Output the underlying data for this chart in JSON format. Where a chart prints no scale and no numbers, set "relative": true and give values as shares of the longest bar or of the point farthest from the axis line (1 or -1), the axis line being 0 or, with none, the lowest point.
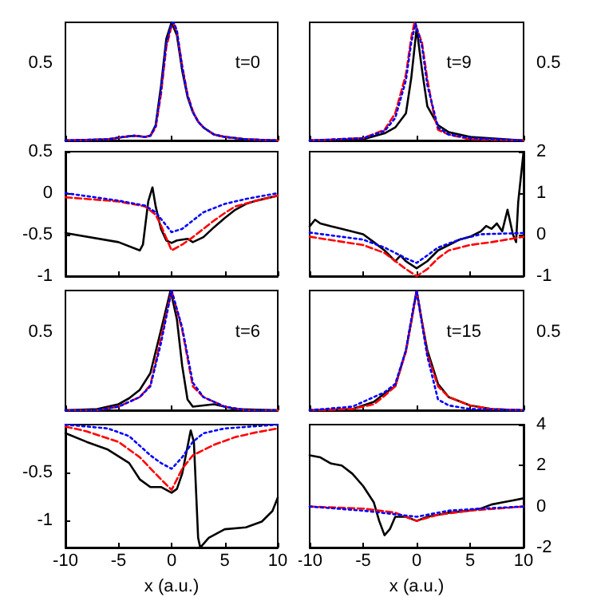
{
  "chart_data": [
    {
      "type": "line",
      "relative": true,
      "annotations": [
        "0.5",
        "t=0"
      ],
      "xlim": [
        -10,
        10
      ],
      "xticks": [
        -10,
        -5,
        0,
        5,
        10
      ],
      "tick_labels": "y",
      "marker": "none",
      "series": [
        {
          "color": "#000000",
          "line_style": "solid",
          "x": [
            -10,
            -6,
            -4.5,
            -3.5,
            -2.5,
            -2,
            -1.5,
            -1,
            -0.5,
            0,
            0.5,
            1,
            1.5,
            2,
            2.5,
            3,
            4,
            5,
            7,
            10
          ],
          "values": [
            0,
            0.01,
            0.03,
            0.04,
            0.03,
            0.04,
            0.13,
            0.46,
            0.86,
            1,
            0.89,
            0.59,
            0.37,
            0.24,
            0.16,
            0.11,
            0.05,
            0.03,
            0.01,
            0
          ]
        },
        {
          "color": "#ff0000",
          "line_style": "dashed",
          "x": [
            -10,
            -6,
            -4.5,
            -3.5,
            -2.5,
            -2,
            -1.5,
            -1,
            -0.5,
            0,
            0.2,
            0.5,
            1,
            1.5,
            2,
            2.5,
            3,
            4,
            5,
            7,
            10
          ],
          "values": [
            0,
            0.01,
            0.03,
            0.04,
            0.03,
            0.04,
            0.11,
            0.39,
            0.79,
            0.97,
            0.99,
            0.92,
            0.63,
            0.39,
            0.25,
            0.16,
            0.11,
            0.05,
            0.03,
            0.01,
            0
          ]
        },
        {
          "color": "#0000ff",
          "line_style": "dotted",
          "x": [
            -10,
            -6,
            -4.5,
            -3.5,
            -2.5,
            -2,
            -1.5,
            -1,
            -0.5,
            0,
            0.2,
            0.5,
            1,
            1.5,
            2,
            2.5,
            3,
            4,
            5,
            7,
            10
          ],
          "values": [
            0,
            0.01,
            0.03,
            0.04,
            0.03,
            0.04,
            0.12,
            0.42,
            0.82,
            0.99,
            1,
            0.93,
            0.62,
            0.38,
            0.24,
            0.16,
            0.11,
            0.05,
            0.03,
            0.01,
            0
          ]
        }
      ]
    },
    {
      "type": "line",
      "relative": true,
      "annotations": [
        "0.5",
        "t=9"
      ],
      "xlim": [
        -10,
        10
      ],
      "xticks": [
        -10,
        -5,
        0,
        5,
        10
      ],
      "tick_labels": "y",
      "marker": "none",
      "series": [
        {
          "color": "#000000",
          "line_style": "solid",
          "x": [
            -10,
            -5,
            -3,
            -2,
            -1,
            -0.5,
            0,
            0.5,
            1,
            2,
            3,
            5,
            10
          ],
          "values": [
            0,
            0.01,
            0.06,
            0.11,
            0.23,
            0.53,
            0.95,
            0.6,
            0.29,
            0.13,
            0.07,
            0.03,
            0
          ]
        },
        {
          "color": "#ff0000",
          "line_style": "dashed",
          "x": [
            -10,
            -5,
            -3,
            -2,
            -1,
            -0.5,
            -0.2,
            0.5,
            1,
            1.5,
            2,
            3,
            5,
            10
          ],
          "values": [
            0,
            0.02,
            0.09,
            0.23,
            0.56,
            0.87,
            1,
            0.83,
            0.52,
            0.27,
            0.09,
            0.05,
            0.01,
            0
          ]
        },
        {
          "color": "#0000ff",
          "line_style": "dotted",
          "x": [
            -10,
            -5,
            -3,
            -2,
            -1,
            -0.5,
            -0.1,
            0.5,
            1,
            2,
            3,
            5,
            10
          ],
          "values": [
            0,
            0.02,
            0.08,
            0.19,
            0.51,
            0.83,
            0.99,
            0.8,
            0.47,
            0.11,
            0.05,
            0.02,
            0
          ]
        }
      ]
    },
    {
      "type": "line",
      "xlim": [
        -10,
        10
      ],
      "xticks": [
        -10,
        -5,
        0,
        5,
        10
      ],
      "ylim": [
        -1,
        0.5
      ],
      "yticks": [
        -1,
        -0.5,
        0,
        0.5
      ],
      "tick_labels": "y",
      "marker": "none",
      "series": [
        {
          "color": "#000000",
          "line_style": "solid",
          "x": [
            -10,
            -5,
            -3,
            -2.7,
            -2.2,
            -1.8,
            -1.5,
            -1,
            -0.5,
            0,
            0.5,
            1.5,
            2,
            3,
            4,
            5,
            6,
            7,
            8,
            10
          ],
          "values": [
            -0.48,
            -0.59,
            -0.69,
            -0.62,
            -0.1,
            0.07,
            -0.16,
            -0.43,
            -0.57,
            -0.6,
            -0.57,
            -0.55,
            -0.59,
            -0.53,
            -0.41,
            -0.3,
            -0.2,
            -0.13,
            -0.09,
            -0.03
          ]
        },
        {
          "color": "#ff0000",
          "line_style": "dashed",
          "x": [
            -10,
            -5,
            -2.5,
            -1.5,
            -1,
            0,
            1,
            2,
            3,
            4,
            5,
            6,
            8,
            10
          ],
          "values": [
            -0.05,
            -0.1,
            -0.16,
            -0.26,
            -0.39,
            -0.69,
            -0.62,
            -0.53,
            -0.43,
            -0.33,
            -0.24,
            -0.16,
            -0.09,
            -0.03
          ]
        },
        {
          "color": "#0000ff",
          "line_style": "dotted",
          "x": [
            -10,
            -5,
            -2.5,
            -1.5,
            -0.5,
            0,
            1,
            2,
            3,
            5,
            7,
            10
          ],
          "values": [
            0,
            -0.09,
            -0.15,
            -0.23,
            -0.39,
            -0.47,
            -0.43,
            -0.33,
            -0.23,
            -0.13,
            -0.07,
            0
          ]
        }
      ]
    },
    {
      "type": "line",
      "xlim": [
        -10,
        10
      ],
      "xticks": [
        -10,
        -5,
        0,
        5,
        10
      ],
      "ylim": [
        -1,
        2
      ],
      "yticks": [
        -1,
        0,
        1,
        2
      ],
      "tick_labels": "y",
      "marker": "none",
      "series": [
        {
          "color": "#000000",
          "line_style": "solid",
          "x": [
            -10,
            -9.5,
            -9,
            -8,
            -7,
            -5,
            -4,
            -3,
            -2,
            -1.5,
            -1,
            0,
            1,
            2,
            3,
            4,
            5,
            6,
            6.5,
            7,
            7.5,
            8,
            8.5,
            9,
            9.3,
            9.5,
            10
          ],
          "values": [
            0.2,
            0.36,
            0.27,
            0.2,
            0.14,
            0.01,
            -0.18,
            -0.38,
            -0.64,
            -0.5,
            -0.64,
            -0.81,
            -0.64,
            -0.38,
            -0.25,
            -0.12,
            -0.05,
            0.08,
            0.21,
            0.14,
            0.27,
            0.08,
            0.6,
            0.01,
            -0.18,
            0.79,
            2
          ]
        },
        {
          "color": "#ff0000",
          "line_style": "dashed",
          "x": [
            -10,
            -5,
            -3,
            -1,
            0,
            1,
            2,
            3,
            5,
            7,
            10
          ],
          "values": [
            -0.05,
            -0.25,
            -0.44,
            -0.83,
            -1,
            -0.83,
            -0.57,
            -0.38,
            -0.25,
            -0.18,
            -0.05
          ]
        },
        {
          "color": "#0000ff",
          "line_style": "dotted",
          "x": [
            -10,
            -5,
            -3,
            -1,
            0,
            1,
            2,
            4,
            6,
            10
          ],
          "values": [
            0.05,
            -0.12,
            -0.31,
            -0.57,
            -0.68,
            -0.5,
            -0.31,
            -0.12,
            0.01,
            0.04
          ]
        }
      ]
    },
    {
      "type": "line",
      "relative": true,
      "annotations": [
        "0.5",
        "t=6"
      ],
      "xlim": [
        -10,
        10
      ],
      "xticks": [
        -10,
        -5,
        0,
        5,
        10
      ],
      "tick_labels": "y",
      "marker": "none",
      "series": [
        {
          "color": "#000000",
          "line_style": "solid",
          "x": [
            -10,
            -7,
            -5,
            -4,
            -3,
            -2,
            -1,
            -0.1,
            0.5,
            1,
            1.5,
            2,
            3,
            4,
            5,
            6,
            10
          ],
          "values": [
            0,
            0.01,
            0.05,
            0.1,
            0.17,
            0.31,
            0.67,
            1,
            0.76,
            0.37,
            0.09,
            0.03,
            0.04,
            0.05,
            0.03,
            0.01,
            0
          ]
        },
        {
          "color": "#ff0000",
          "line_style": "dashed",
          "x": [
            -10,
            -7,
            -5,
            -3,
            -2,
            -1,
            0,
            1,
            2,
            3,
            4,
            5,
            7,
            10
          ],
          "values": [
            0,
            0,
            0.03,
            0.11,
            0.21,
            0.6,
            1,
            0.67,
            0.2,
            0.11,
            0.07,
            0.03,
            0,
            0
          ]
        },
        {
          "color": "#0000ff",
          "line_style": "dotted",
          "x": [
            -10,
            -7,
            -5,
            -3,
            -2,
            -1,
            0,
            1,
            2,
            3,
            4,
            5,
            7,
            10
          ],
          "values": [
            0,
            0,
            0.03,
            0.11,
            0.2,
            0.56,
            1,
            0.69,
            0.23,
            0.11,
            0.07,
            0.03,
            0,
            0
          ]
        }
      ]
    },
    {
      "type": "line",
      "relative": true,
      "annotations": [
        "0.5",
        "t=15"
      ],
      "xlim": [
        -10,
        10
      ],
      "xticks": [
        -10,
        -5,
        0,
        5,
        10
      ],
      "tick_labels": "y",
      "marker": "none",
      "series": [
        {
          "color": "#000000",
          "line_style": "solid",
          "x": [
            -10,
            -6,
            -4,
            -3,
            -2,
            -1,
            -0.5,
            0,
            0.5,
            1,
            2,
            3,
            5,
            7,
            10
          ],
          "values": [
            0,
            0.01,
            0.07,
            0.14,
            0.2,
            0.5,
            0.74,
            1,
            0.74,
            0.5,
            0.22,
            0.11,
            0.04,
            0.01,
            0
          ]
        },
        {
          "color": "#ff0000",
          "line_style": "dashed",
          "x": [
            -10,
            -6,
            -4,
            -3,
            -2,
            -1,
            -0.5,
            0,
            0.5,
            1,
            2,
            3,
            5,
            7,
            10
          ],
          "values": [
            0,
            0.01,
            0.05,
            0.12,
            0.2,
            0.49,
            0.74,
            1,
            0.74,
            0.47,
            0.2,
            0.11,
            0.04,
            0.01,
            0
          ]
        },
        {
          "color": "#0000ff",
          "line_style": "dotted",
          "x": [
            -10,
            -6,
            -4,
            -3,
            -2,
            -1,
            -0.5,
            0,
            0.5,
            1,
            2,
            3,
            5,
            10
          ],
          "values": [
            0,
            0.03,
            0.11,
            0.15,
            0.22,
            0.5,
            0.76,
            1,
            0.72,
            0.45,
            0.09,
            0.04,
            0.01,
            0
          ]
        }
      ]
    },
    {
      "type": "line",
      "xlabel": "x (a.u.)",
      "xlim": [
        -10,
        10
      ],
      "xticks": [
        -10,
        -5,
        0,
        5,
        10
      ],
      "ylim": [
        -1.28,
        0
      ],
      "yticks": [
        -1,
        -0.5
      ],
      "marker": "none",
      "series": [
        {
          "color": "#000000",
          "line_style": "solid",
          "x": [
            -10,
            -8,
            -6,
            -4,
            -3,
            -2,
            -1,
            0,
            0.5,
            1,
            1.5,
            1.8,
            2.1,
            2.5,
            2.7,
            3.5,
            5,
            7,
            8.5,
            9.5,
            10
          ],
          "values": [
            -0.09,
            -0.18,
            -0.26,
            -0.4,
            -0.57,
            -0.65,
            -0.65,
            -0.71,
            -0.67,
            -0.51,
            -0.23,
            -0.06,
            -0.18,
            -1.18,
            -1.28,
            -1.18,
            -1.09,
            -1.07,
            -1.01,
            -0.9,
            -0.76
          ]
        },
        {
          "color": "#ff0000",
          "line_style": "dashed",
          "x": [
            -10,
            -8,
            -5,
            -3,
            -1,
            0,
            1,
            2,
            4,
            6,
            8,
            10
          ],
          "values": [
            -0.02,
            -0.07,
            -0.18,
            -0.34,
            -0.57,
            -0.68,
            -0.46,
            -0.32,
            -0.21,
            -0.13,
            -0.08,
            -0.04
          ]
        },
        {
          "color": "#0000ff",
          "line_style": "dotted",
          "x": [
            -10,
            -6,
            -4,
            -2,
            -1,
            0,
            1,
            2,
            3,
            5,
            10
          ],
          "values": [
            0,
            -0.04,
            -0.12,
            -0.32,
            -0.4,
            -0.46,
            -0.34,
            -0.18,
            -0.09,
            -0.04,
            0
          ]
        }
      ]
    },
    {
      "type": "line",
      "xlabel": "x (a.u.)",
      "xlim": [
        -10,
        10
      ],
      "xticks": [
        -10,
        -5,
        0,
        5,
        10
      ],
      "ylim": [
        -2,
        4
      ],
      "yticks": [
        -2,
        0,
        2,
        4
      ],
      "marker": "none",
      "series": [
        {
          "color": "#000000",
          "line_style": "solid",
          "x": [
            -10,
            -9,
            -8,
            -7,
            -6,
            -5,
            -4,
            -3.5,
            -3,
            -2.5,
            -2,
            -1,
            0,
            1,
            2,
            3,
            5,
            6,
            7,
            8,
            9,
            10
          ],
          "values": [
            2.5,
            2.4,
            2.1,
            2,
            1.6,
            1,
            0.2,
            -0.7,
            -1.4,
            -1.1,
            -0.5,
            -0.5,
            -0.7,
            -0.5,
            -0.4,
            -0.3,
            -0.2,
            -0.1,
            0.1,
            0.2,
            0.3,
            0.4
          ]
        },
        {
          "color": "#ff0000",
          "line_style": "dashed",
          "x": [
            -10,
            -5,
            -2,
            0,
            2,
            5,
            10
          ],
          "values": [
            0,
            -0.1,
            -0.3,
            -0.7,
            -0.4,
            -0.2,
            0
          ]
        },
        {
          "color": "#0000ff",
          "line_style": "dotted",
          "x": [
            -10,
            -5,
            0,
            3,
            6,
            10
          ],
          "values": [
            0,
            -0.2,
            -0.5,
            -0.2,
            -0.1,
            0
          ]
        }
      ]
    }
  ]
}
